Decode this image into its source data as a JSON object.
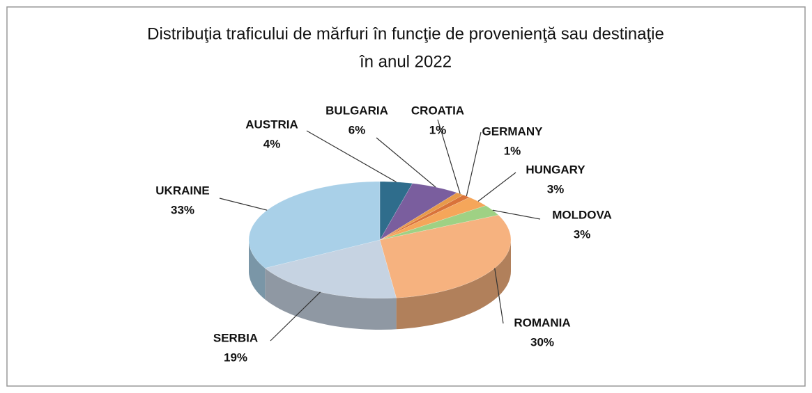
{
  "chart_data": {
    "type": "pie",
    "title": [
      "Distribuţia traficului de mărfuri în funcţie de provenienţă sau destinaţie",
      "în anul  2022"
    ],
    "categories": [
      "AUSTRIA",
      "BULGARIA",
      "CROATIA",
      "GERMANY",
      "HUNGARY",
      "MOLDOVA",
      "ROMANIA",
      "SERBIA",
      "UKRAINE"
    ],
    "values": [
      4,
      6,
      1,
      1,
      3,
      3,
      30,
      19,
      33
    ],
    "value_labels": [
      "4%",
      "6%",
      "1%",
      "1%",
      "3%",
      "3%",
      "30%",
      "19%",
      "33%"
    ],
    "colors": [
      "#2f6d8c",
      "#7a5e9e",
      "#e89a4a",
      "#d9733a",
      "#f5a65a",
      "#9fd184",
      "#f6b27f",
      "#c6d3e2",
      "#a9d0e8"
    ]
  }
}
